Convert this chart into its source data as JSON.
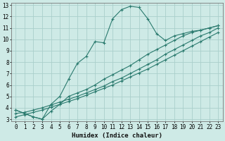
{
  "xlabel": "Humidex (Indice chaleur)",
  "bg_color": "#ceeae6",
  "grid_color": "#aacfcb",
  "line_color": "#2a7a6e",
  "xlim": [
    -0.5,
    23.5
  ],
  "ylim": [
    2.8,
    13.2
  ],
  "xticks": [
    0,
    1,
    2,
    3,
    4,
    5,
    6,
    7,
    8,
    9,
    10,
    11,
    12,
    13,
    14,
    15,
    16,
    17,
    18,
    19,
    20,
    21,
    22,
    23
  ],
  "yticks": [
    3,
    4,
    5,
    6,
    7,
    8,
    9,
    10,
    11,
    12,
    13
  ],
  "line1_x": [
    0,
    1,
    2,
    3,
    4,
    5,
    6,
    7,
    8,
    9,
    10,
    11,
    12,
    13,
    14,
    15,
    16,
    17,
    18,
    19,
    20,
    21,
    22,
    23
  ],
  "line1_y": [
    3.8,
    3.5,
    3.2,
    3.0,
    4.3,
    5.0,
    6.5,
    7.9,
    8.5,
    9.8,
    9.7,
    11.8,
    12.6,
    12.9,
    12.8,
    11.8,
    10.5,
    9.9,
    10.3,
    10.5,
    10.7,
    10.8,
    11.0,
    11.2
  ],
  "line2_x": [
    0,
    2,
    3,
    4,
    5,
    6,
    7,
    8,
    9,
    10,
    11,
    12,
    13,
    14,
    15,
    16,
    17,
    18,
    19,
    20,
    21,
    22,
    23
  ],
  "line2_y": [
    3.8,
    3.2,
    3.0,
    3.7,
    4.3,
    5.0,
    5.3,
    5.6,
    6.0,
    6.5,
    6.9,
    7.3,
    7.7,
    8.2,
    8.7,
    9.1,
    9.5,
    9.9,
    10.3,
    10.6,
    10.8,
    11.0,
    11.2
  ],
  "line3_x": [
    0,
    1,
    2,
    3,
    4,
    5,
    6,
    7,
    8,
    9,
    10,
    11,
    12,
    13,
    14,
    15,
    16,
    17,
    18,
    19,
    20,
    21,
    22,
    23
  ],
  "line3_y": [
    3.5,
    3.6,
    3.8,
    4.0,
    4.25,
    4.5,
    4.75,
    5.0,
    5.3,
    5.6,
    5.9,
    6.3,
    6.6,
    7.0,
    7.4,
    7.8,
    8.2,
    8.7,
    9.1,
    9.5,
    9.9,
    10.3,
    10.6,
    11.0
  ],
  "line4_x": [
    0,
    1,
    2,
    3,
    4,
    5,
    6,
    7,
    8,
    9,
    10,
    11,
    12,
    13,
    14,
    15,
    16,
    17,
    18,
    19,
    20,
    21,
    22,
    23
  ],
  "line4_y": [
    3.2,
    3.4,
    3.6,
    3.8,
    4.05,
    4.3,
    4.55,
    4.8,
    5.1,
    5.4,
    5.7,
    6.0,
    6.35,
    6.7,
    7.05,
    7.4,
    7.8,
    8.2,
    8.6,
    9.0,
    9.4,
    9.8,
    10.2,
    10.6
  ],
  "tick_fontsize": 5.5,
  "label_fontsize": 6.5
}
